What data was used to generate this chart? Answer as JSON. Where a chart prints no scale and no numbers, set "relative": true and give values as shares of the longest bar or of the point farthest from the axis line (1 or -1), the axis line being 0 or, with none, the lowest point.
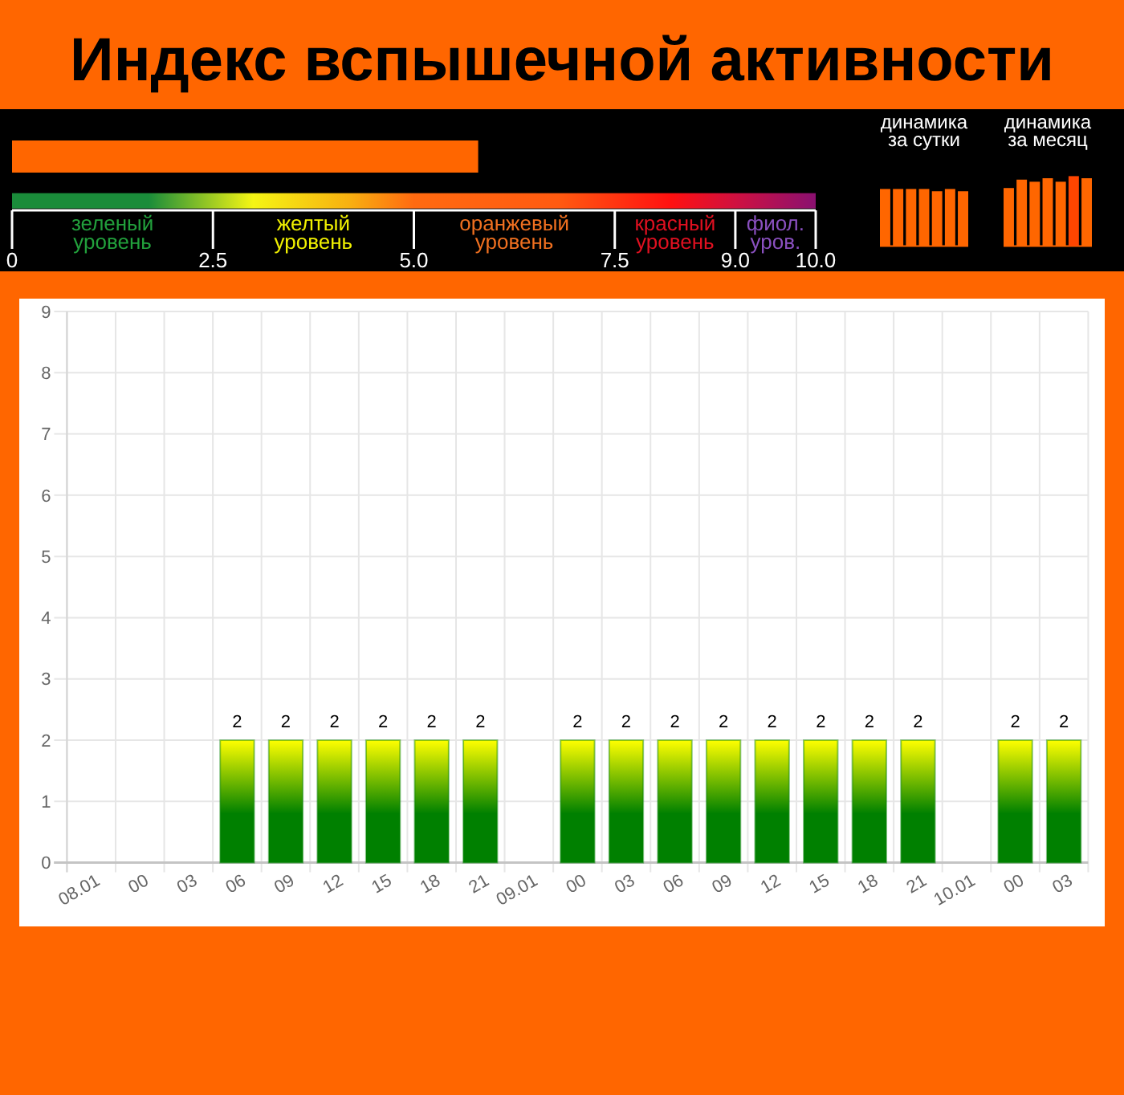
{
  "chart_data": [
    {
      "type": "bar",
      "title": "Индекс вспышечной активности",
      "orientation": "horizontal",
      "categories": [
        null
      ],
      "values": [
        5.8
      ],
      "color": "#ff6600",
      "xlim": [
        0,
        10
      ],
      "xticks": [
        0,
        2.5,
        {
          "value": 5,
          "label": "5.0"
        },
        7.5,
        {
          "value": 9,
          "label": "9.0"
        },
        {
          "value": 10,
          "label": "10.0"
        }
      ],
      "annotations": [
        "зеленый уровень",
        "желтый уровень",
        "оранжевый уровень",
        "красный уровень",
        "фиол. уров."
      ]
    },
    {
      "type": "bar",
      "title": "динамика за сутки",
      "relative": true,
      "categories": [
        null,
        null,
        null,
        null,
        null,
        null,
        null
      ],
      "values": [
        1,
        1,
        1,
        1,
        0.96,
        1,
        0.96
      ],
      "color": "#ff6600"
    },
    {
      "type": "bar",
      "title": "динамика за месяц",
      "relative": true,
      "categories": [
        null,
        null,
        null,
        null,
        null,
        null,
        null
      ],
      "values": [
        0.83,
        0.95,
        0.92,
        0.97,
        0.92,
        1,
        0.97
      ],
      "colors": [
        "#ff6600",
        "#ff6600",
        "#ff6600",
        "#ff6600",
        "#ff6600",
        "#ff4500",
        "#ff6600"
      ]
    },
    {
      "type": "bar",
      "categories": [
        "08.01",
        "00",
        "03",
        "06",
        "09",
        "12",
        "15",
        "18",
        "21",
        "09.01",
        "00",
        "03",
        "06",
        "09",
        "12",
        "15",
        "18",
        "21",
        "10.01",
        "00",
        "03"
      ],
      "values": [
        0,
        0,
        0,
        2,
        2,
        2,
        2,
        2,
        2,
        0,
        2,
        2,
        2,
        2,
        2,
        2,
        2,
        2,
        0,
        2,
        2
      ],
      "color": "#008000",
      "ylim": [
        0,
        9
      ],
      "yticks": [
        0,
        1,
        2,
        3,
        4,
        5,
        6,
        7,
        8,
        9
      ],
      "grid": true,
      "value_labels": [
        null,
        null,
        null,
        "2",
        "2",
        "2",
        "2",
        "2",
        "2",
        null,
        "2",
        "2",
        "2",
        "2",
        "2",
        "2",
        "2",
        "2",
        null,
        "2",
        "2"
      ]
    }
  ]
}
